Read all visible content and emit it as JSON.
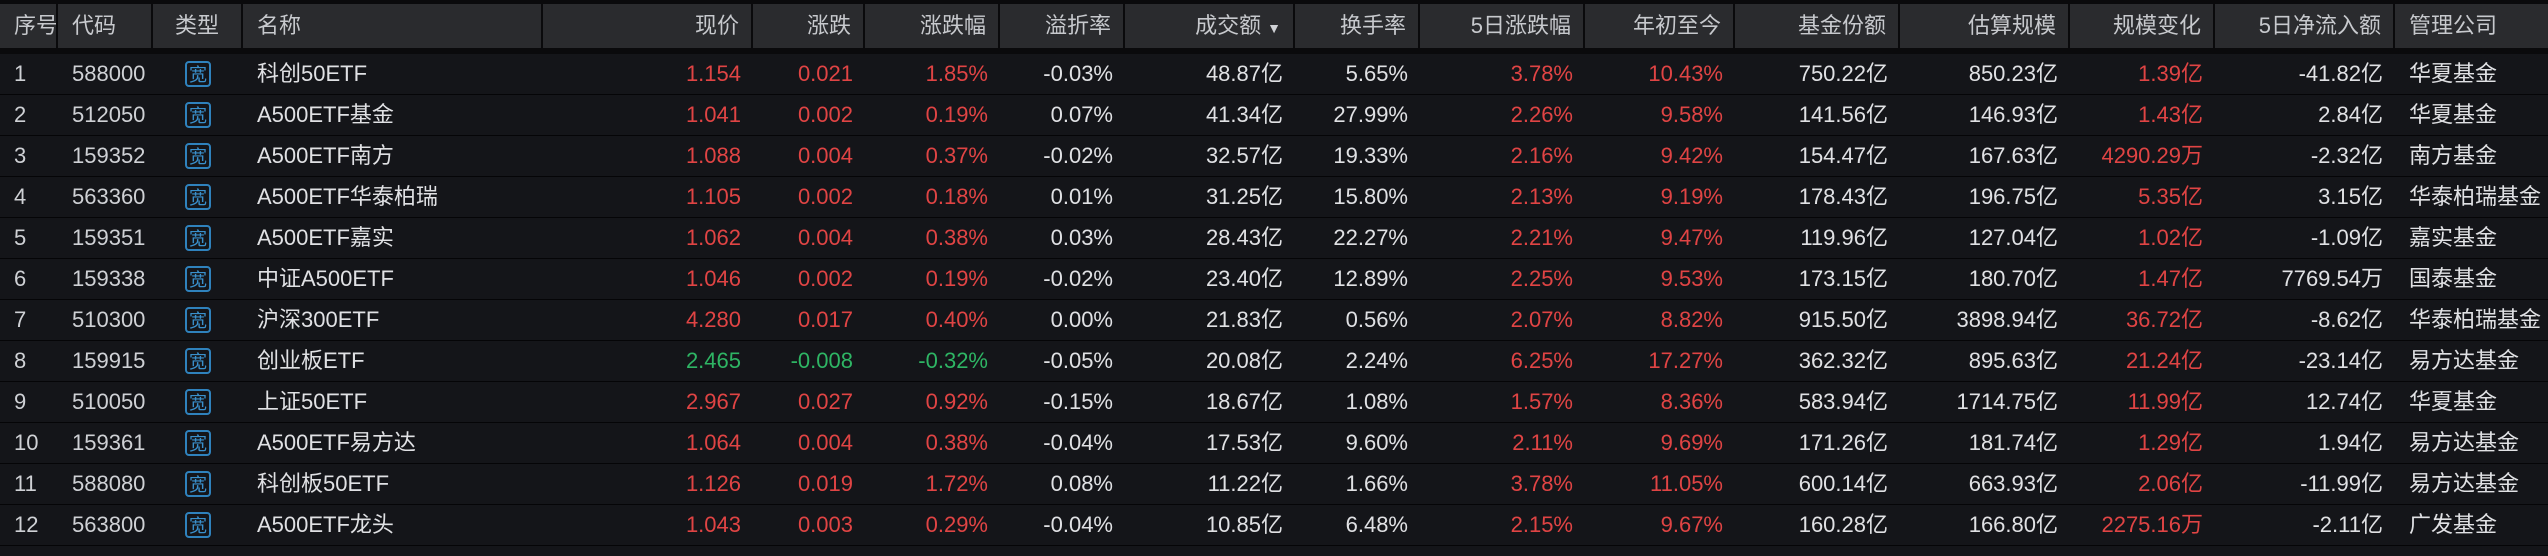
{
  "table": {
    "sort_icon": "▼",
    "columns": [
      {
        "key": "seq",
        "label": "序号",
        "align": "left"
      },
      {
        "key": "code",
        "label": "代码",
        "align": "left"
      },
      {
        "key": "type",
        "label": "类型",
        "align": "center"
      },
      {
        "key": "name",
        "label": "名称",
        "align": "left"
      },
      {
        "key": "price",
        "label": "现价",
        "align": "right"
      },
      {
        "key": "change",
        "label": "涨跌",
        "align": "right"
      },
      {
        "key": "change-pct",
        "label": "涨跌幅",
        "align": "right"
      },
      {
        "key": "premium-rate",
        "label": "溢折率",
        "align": "right"
      },
      {
        "key": "turnover",
        "label": "成交额",
        "align": "right",
        "sorted": true
      },
      {
        "key": "turnover-rate",
        "label": "换手率",
        "align": "right"
      },
      {
        "key": "5d-change-pct",
        "label": "5日涨跌幅",
        "align": "right"
      },
      {
        "key": "ytd",
        "label": "年初至今",
        "align": "right"
      },
      {
        "key": "fund-shares",
        "label": "基金份额",
        "align": "right"
      },
      {
        "key": "est-scale",
        "label": "估算规模",
        "align": "right"
      },
      {
        "key": "scale-change",
        "label": "规模变化",
        "align": "right"
      },
      {
        "key": "5d-net-inflow",
        "label": "5日净流入额",
        "align": "right"
      },
      {
        "key": "manager",
        "label": "管理公司",
        "align": "left"
      }
    ],
    "type_badge_label": "宽",
    "rows": [
      {
        "cells": [
          "1",
          "588000",
          "宽",
          "科创50ETF",
          "1.154",
          "0.021",
          "1.85%",
          "-0.03%",
          "48.87亿",
          "5.65%",
          "3.78%",
          "10.43%",
          "750.22亿",
          "850.23亿",
          "1.39亿",
          "-41.82亿",
          "华夏基金"
        ],
        "colors": [
          "dim",
          "dim",
          "badge",
          "n",
          "up",
          "up",
          "up",
          "n",
          "n",
          "n",
          "up",
          "up",
          "n",
          "n",
          "up",
          "n",
          "n"
        ]
      },
      {
        "cells": [
          "2",
          "512050",
          "宽",
          "A500ETF基金",
          "1.041",
          "0.002",
          "0.19%",
          "0.07%",
          "41.34亿",
          "27.99%",
          "2.26%",
          "9.58%",
          "141.56亿",
          "146.93亿",
          "1.43亿",
          "2.84亿",
          "华夏基金"
        ],
        "colors": [
          "dim",
          "dim",
          "badge",
          "n",
          "up",
          "up",
          "up",
          "n",
          "n",
          "n",
          "up",
          "up",
          "n",
          "n",
          "up",
          "n",
          "n"
        ]
      },
      {
        "cells": [
          "3",
          "159352",
          "宽",
          "A500ETF南方",
          "1.088",
          "0.004",
          "0.37%",
          "-0.02%",
          "32.57亿",
          "19.33%",
          "2.16%",
          "9.42%",
          "154.47亿",
          "167.63亿",
          "4290.29万",
          "-2.32亿",
          "南方基金"
        ],
        "colors": [
          "dim",
          "dim",
          "badge",
          "n",
          "up",
          "up",
          "up",
          "n",
          "n",
          "n",
          "up",
          "up",
          "n",
          "n",
          "up",
          "n",
          "n"
        ]
      },
      {
        "cells": [
          "4",
          "563360",
          "宽",
          "A500ETF华泰柏瑞",
          "1.105",
          "0.002",
          "0.18%",
          "0.01%",
          "31.25亿",
          "15.80%",
          "2.13%",
          "9.19%",
          "178.43亿",
          "196.75亿",
          "5.35亿",
          "3.15亿",
          "华泰柏瑞基金"
        ],
        "colors": [
          "dim",
          "dim",
          "badge",
          "n",
          "up",
          "up",
          "up",
          "n",
          "n",
          "n",
          "up",
          "up",
          "n",
          "n",
          "up",
          "n",
          "n"
        ]
      },
      {
        "cells": [
          "5",
          "159351",
          "宽",
          "A500ETF嘉实",
          "1.062",
          "0.004",
          "0.38%",
          "0.03%",
          "28.43亿",
          "22.27%",
          "2.21%",
          "9.47%",
          "119.96亿",
          "127.04亿",
          "1.02亿",
          "-1.09亿",
          "嘉实基金"
        ],
        "colors": [
          "dim",
          "dim",
          "badge",
          "n",
          "up",
          "up",
          "up",
          "n",
          "n",
          "n",
          "up",
          "up",
          "n",
          "n",
          "up",
          "n",
          "n"
        ]
      },
      {
        "cells": [
          "6",
          "159338",
          "宽",
          "中证A500ETF",
          "1.046",
          "0.002",
          "0.19%",
          "-0.02%",
          "23.40亿",
          "12.89%",
          "2.25%",
          "9.53%",
          "173.15亿",
          "180.70亿",
          "1.47亿",
          "7769.54万",
          "国泰基金"
        ],
        "colors": [
          "dim",
          "dim",
          "badge",
          "n",
          "up",
          "up",
          "up",
          "n",
          "n",
          "n",
          "up",
          "up",
          "n",
          "n",
          "up",
          "n",
          "n"
        ]
      },
      {
        "cells": [
          "7",
          "510300",
          "宽",
          "沪深300ETF",
          "4.280",
          "0.017",
          "0.40%",
          "0.00%",
          "21.83亿",
          "0.56%",
          "2.07%",
          "8.82%",
          "915.50亿",
          "3898.94亿",
          "36.72亿",
          "-8.62亿",
          "华泰柏瑞基金"
        ],
        "colors": [
          "dim",
          "dim",
          "badge",
          "n",
          "up",
          "up",
          "up",
          "n",
          "n",
          "n",
          "up",
          "up",
          "n",
          "n",
          "up",
          "n",
          "n"
        ]
      },
      {
        "cells": [
          "8",
          "159915",
          "宽",
          "创业板ETF",
          "2.465",
          "-0.008",
          "-0.32%",
          "-0.05%",
          "20.08亿",
          "2.24%",
          "6.25%",
          "17.27%",
          "362.32亿",
          "895.63亿",
          "21.24亿",
          "-23.14亿",
          "易方达基金"
        ],
        "colors": [
          "dim",
          "dim",
          "badge",
          "n",
          "down",
          "down",
          "down",
          "n",
          "n",
          "n",
          "up",
          "up",
          "n",
          "n",
          "up",
          "n",
          "n"
        ]
      },
      {
        "cells": [
          "9",
          "510050",
          "宽",
          "上证50ETF",
          "2.967",
          "0.027",
          "0.92%",
          "-0.15%",
          "18.67亿",
          "1.08%",
          "1.57%",
          "8.36%",
          "583.94亿",
          "1714.75亿",
          "11.99亿",
          "12.74亿",
          "华夏基金"
        ],
        "colors": [
          "dim",
          "dim",
          "badge",
          "n",
          "up",
          "up",
          "up",
          "n",
          "n",
          "n",
          "up",
          "up",
          "n",
          "n",
          "up",
          "n",
          "n"
        ]
      },
      {
        "cells": [
          "10",
          "159361",
          "宽",
          "A500ETF易方达",
          "1.064",
          "0.004",
          "0.38%",
          "-0.04%",
          "17.53亿",
          "9.60%",
          "2.11%",
          "9.69%",
          "171.26亿",
          "181.74亿",
          "1.29亿",
          "1.94亿",
          "易方达基金"
        ],
        "colors": [
          "dim",
          "dim",
          "badge",
          "n",
          "up",
          "up",
          "up",
          "n",
          "n",
          "n",
          "up",
          "up",
          "n",
          "n",
          "up",
          "n",
          "n"
        ]
      },
      {
        "cells": [
          "11",
          "588080",
          "宽",
          "科创板50ETF",
          "1.126",
          "0.019",
          "1.72%",
          "0.08%",
          "11.22亿",
          "1.66%",
          "3.78%",
          "11.05%",
          "600.14亿",
          "663.93亿",
          "2.06亿",
          "-11.99亿",
          "易方达基金"
        ],
        "colors": [
          "dim",
          "dim",
          "badge",
          "n",
          "up",
          "up",
          "up",
          "n",
          "n",
          "n",
          "up",
          "up",
          "n",
          "n",
          "up",
          "n",
          "n"
        ]
      },
      {
        "cells": [
          "12",
          "563800",
          "宽",
          "A500ETF龙头",
          "1.043",
          "0.003",
          "0.29%",
          "-0.04%",
          "10.85亿",
          "6.48%",
          "2.15%",
          "9.67%",
          "160.28亿",
          "166.80亿",
          "2275.16万",
          "-2.11亿",
          "广发基金"
        ],
        "colors": [
          "dim",
          "dim",
          "badge",
          "n",
          "up",
          "up",
          "up",
          "n",
          "n",
          "n",
          "up",
          "up",
          "n",
          "n",
          "up",
          "n",
          "n"
        ]
      }
    ]
  },
  "colors": {
    "up_red": "#e04444",
    "down_green": "#2eb564",
    "neutral_text": "#e0e1e4",
    "header_text": "#c7c9cd",
    "badge_blue": "#2f82bd",
    "row_bg": "#141519",
    "header_bg": "#2a2b2e",
    "page_bg": "#0a0a0c"
  }
}
